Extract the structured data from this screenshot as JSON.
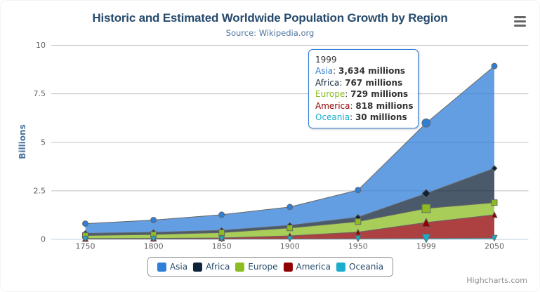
{
  "chart_data": {
    "type": "area",
    "stacking": "normal",
    "title": "Historic and Estimated Worldwide Population Growth by Region",
    "subtitle": "Source: Wikipedia.org",
    "categories": [
      "1750",
      "1800",
      "1850",
      "1900",
      "1950",
      "1999",
      "2050"
    ],
    "xlabel": "",
    "ylabel": "Billions",
    "ylim": [
      0,
      10000
    ],
    "y_unit": "millions",
    "yticks": [
      {
        "value": 0,
        "label": "0"
      },
      {
        "value": 2500,
        "label": "2.5"
      },
      {
        "value": 5000,
        "label": "5"
      },
      {
        "value": 7500,
        "label": "7.5"
      },
      {
        "value": 10000,
        "label": "10"
      }
    ],
    "grid": true,
    "legend_position": "bottom",
    "stack_order_bottom_to_top": [
      "Oceania",
      "America",
      "Europe",
      "Africa",
      "Asia"
    ],
    "series": [
      {
        "name": "Asia",
        "color": "#2f7ed8",
        "marker": "circle",
        "values": [
          502,
          635,
          809,
          947,
          1402,
          3634,
          5268
        ]
      },
      {
        "name": "Africa",
        "color": "#0d233a",
        "marker": "diamond",
        "values": [
          106,
          107,
          111,
          133,
          221,
          767,
          1766
        ]
      },
      {
        "name": "Europe",
        "color": "#8bbc21",
        "marker": "square",
        "values": [
          163,
          203,
          276,
          408,
          547,
          729,
          628
        ]
      },
      {
        "name": "America",
        "color": "#910000",
        "marker": "triangle",
        "values": [
          18,
          31,
          54,
          156,
          339,
          818,
          1201
        ]
      },
      {
        "name": "Oceania",
        "color": "#1aadce",
        "marker": "triangle-down",
        "values": [
          2,
          2,
          2,
          6,
          13,
          30,
          46
        ]
      }
    ],
    "fill_opacity": 0.75,
    "line_color": "#666666",
    "hovered_category": "1999",
    "hovered_category_index": 5
  },
  "tooltip": {
    "header": "1999",
    "rows": [
      {
        "name": "Asia",
        "color": "#2f7ed8",
        "value": "3,634 millions"
      },
      {
        "name": "Africa",
        "color": "#0d233a",
        "value": "767 millions"
      },
      {
        "name": "Europe",
        "color": "#8bbc21",
        "value": "729 millions"
      },
      {
        "name": "America",
        "color": "#910000",
        "value": "818 millions"
      },
      {
        "name": "Oceania",
        "color": "#1aadce",
        "value": "30 millions"
      }
    ]
  },
  "legend": {
    "items": [
      {
        "label": "Asia",
        "color": "#2f7ed8"
      },
      {
        "label": "Africa",
        "color": "#0d233a"
      },
      {
        "label": "Europe",
        "color": "#8bbc21"
      },
      {
        "label": "America",
        "color": "#910000"
      },
      {
        "label": "Oceania",
        "color": "#1aadce"
      }
    ]
  },
  "credits": {
    "label": "Highcharts.com"
  },
  "context_menu": {
    "icon": "hamburger-menu-icon"
  },
  "colors": {
    "title": "#274b6d",
    "subtitle": "#4d759e",
    "axis_title": "#4d759e",
    "axis_labels": "#606060",
    "grid_line": "#c0c0c0",
    "x_axis_line": "#c0d0e0",
    "legend_border": "#909090",
    "tooltip_border": "#2f7ed8",
    "series_outline": "#666666"
  }
}
